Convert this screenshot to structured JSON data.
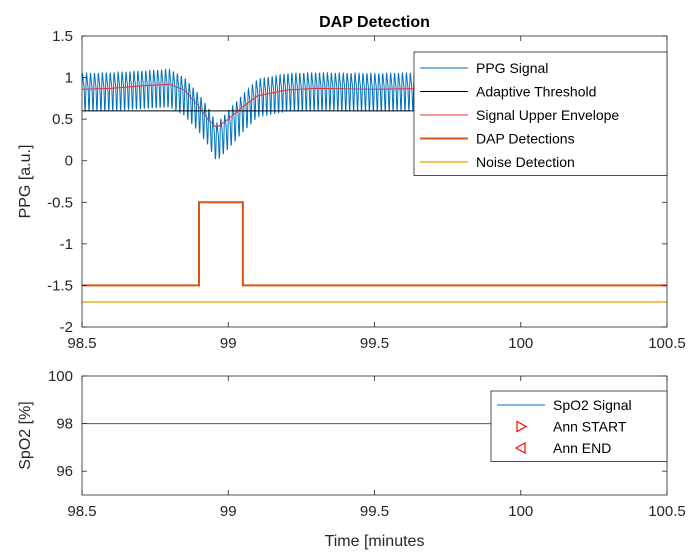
{
  "chart_data": [
    {
      "type": "line",
      "title": "DAP Detection",
      "xlabel": "",
      "ylabel": "PPG [a.u.]",
      "xlim": [
        98.5,
        100.5
      ],
      "ylim": [
        -2,
        1.5
      ],
      "xticks": [
        "98.5",
        "99",
        "99.5",
        "100",
        "100.5"
      ],
      "yticks": [
        "1.5",
        "1",
        "0.5",
        "0",
        "-0.5",
        "-1",
        "-1.5",
        "-2"
      ],
      "legend_position": "top-right",
      "series": [
        {
          "name": "PPG Signal",
          "color": "#0072BD",
          "description_values": {
            "baseline_mean": 0.85,
            "oscillation_amplitude": 0.27,
            "oscillation_period_minutes": 0.0135,
            "dip_center": 98.96,
            "dip_minimum": 0.1
          },
          "x": [
            98.5,
            98.6,
            98.7,
            98.8,
            98.85,
            98.9,
            98.93,
            98.96,
            99.0,
            99.05,
            99.1,
            99.2,
            99.3,
            99.5,
            99.7,
            99.9,
            100.1,
            100.3,
            100.5
          ],
          "y": [
            0.85,
            0.86,
            0.88,
            0.9,
            0.8,
            0.6,
            0.45,
            0.25,
            0.4,
            0.6,
            0.78,
            0.85,
            0.86,
            0.85,
            0.86,
            0.86,
            0.87,
            0.86,
            0.85
          ]
        },
        {
          "name": "Adaptive Threshold",
          "color": "#000000",
          "x": [
            98.5,
            100.5
          ],
          "y": [
            0.6,
            0.6
          ]
        },
        {
          "name": "Signal Upper Envelope",
          "color": "#E4303A",
          "x": [
            98.5,
            98.6,
            98.7,
            98.8,
            98.85,
            98.9,
            98.93,
            98.96,
            99.0,
            99.05,
            99.1,
            99.2,
            99.3,
            99.5,
            99.7,
            99.9,
            100.1,
            100.3,
            100.45,
            100.5
          ],
          "y": [
            0.86,
            0.87,
            0.9,
            0.92,
            0.85,
            0.65,
            0.5,
            0.4,
            0.5,
            0.65,
            0.78,
            0.85,
            0.87,
            0.86,
            0.87,
            0.87,
            0.88,
            0.88,
            0.87,
            0.8
          ]
        },
        {
          "name": "DAP Detections",
          "color": "#D95319",
          "x": [
            98.5,
            98.9,
            98.9,
            99.05,
            99.05,
            100.5
          ],
          "y": [
            -1.5,
            -1.5,
            -0.5,
            -0.5,
            -1.5,
            -1.5
          ]
        },
        {
          "name": "Noise Detection",
          "color": "#EDB120",
          "x": [
            98.5,
            100.5
          ],
          "y": [
            -1.7,
            -1.7
          ]
        }
      ]
    },
    {
      "type": "line",
      "title": "",
      "xlabel": "Time [minutes",
      "ylabel": "SpO2 [%]",
      "xlim": [
        98.5,
        100.5
      ],
      "ylim": [
        95,
        100
      ],
      "xticks": [
        "98.5",
        "99",
        "99.5",
        "100",
        "100.5"
      ],
      "yticks": [
        "100",
        "98",
        "96"
      ],
      "legend_position": "top-right",
      "series": [
        {
          "name": "SpO2 Signal",
          "color": "#0072BD",
          "x": [
            98.5,
            100.5
          ],
          "y": [
            98,
            98
          ]
        },
        {
          "name": "Ann START",
          "color": "#FF0000",
          "marker": "triangle-right",
          "x": [],
          "y": []
        },
        {
          "name": "Ann END",
          "color": "#FF0000",
          "marker": "triangle-left",
          "x": [],
          "y": []
        }
      ]
    }
  ]
}
